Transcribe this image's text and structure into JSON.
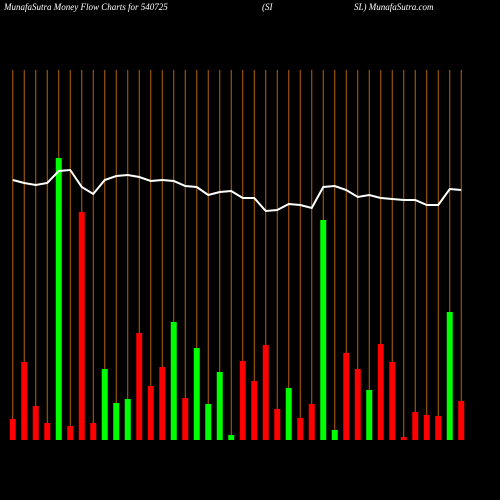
{
  "chart_data": {
    "type": "bar",
    "title_parts": [
      "MunafaSutra  Money Flow  Charts for 540725",
      "(SI",
      "SL) MunafaSutra.com"
    ],
    "values": [
      21,
      78,
      34,
      17,
      282,
      14,
      228,
      17,
      71,
      37,
      41,
      107,
      54,
      73,
      118,
      42,
      92,
      36,
      68,
      5,
      79,
      59,
      95,
      31,
      52,
      22,
      36,
      220,
      10,
      87,
      71,
      50,
      96,
      78,
      3,
      28,
      25,
      24,
      128,
      39
    ],
    "colors": [
      "#ff0000",
      "#ff0000",
      "#ff0000",
      "#ff0000",
      "#00ff00",
      "#ff0000",
      "#ff0000",
      "#ff0000",
      "#00ff00",
      "#00ff00",
      "#00ff00",
      "#ff0000",
      "#ff0000",
      "#ff0000",
      "#00ff00",
      "#ff0000",
      "#00ff00",
      "#00ff00",
      "#00ff00",
      "#00ff00",
      "#ff0000",
      "#ff0000",
      "#ff0000",
      "#ff0000",
      "#00ff00",
      "#ff0000",
      "#ff0000",
      "#00ff00",
      "#00ff00",
      "#ff0000",
      "#ff0000",
      "#00ff00",
      "#ff0000",
      "#ff0000",
      "#ff0000",
      "#ff0000",
      "#ff0000",
      "#ff0000",
      "#00ff00",
      "#ff0000"
    ],
    "line": {
      "color": "#ffffff",
      "values": [
        260,
        257,
        255,
        257,
        269,
        270,
        253,
        246,
        260,
        264,
        265,
        263,
        259,
        260,
        259,
        254,
        253,
        245,
        248,
        249,
        242,
        242,
        229,
        230,
        236,
        235,
        232,
        253,
        254,
        250,
        243,
        245,
        242,
        241,
        240,
        240,
        235,
        235,
        251,
        250
      ]
    },
    "grid_color": "#b8620a",
    "ylim": [
      0,
      440
    ]
  }
}
